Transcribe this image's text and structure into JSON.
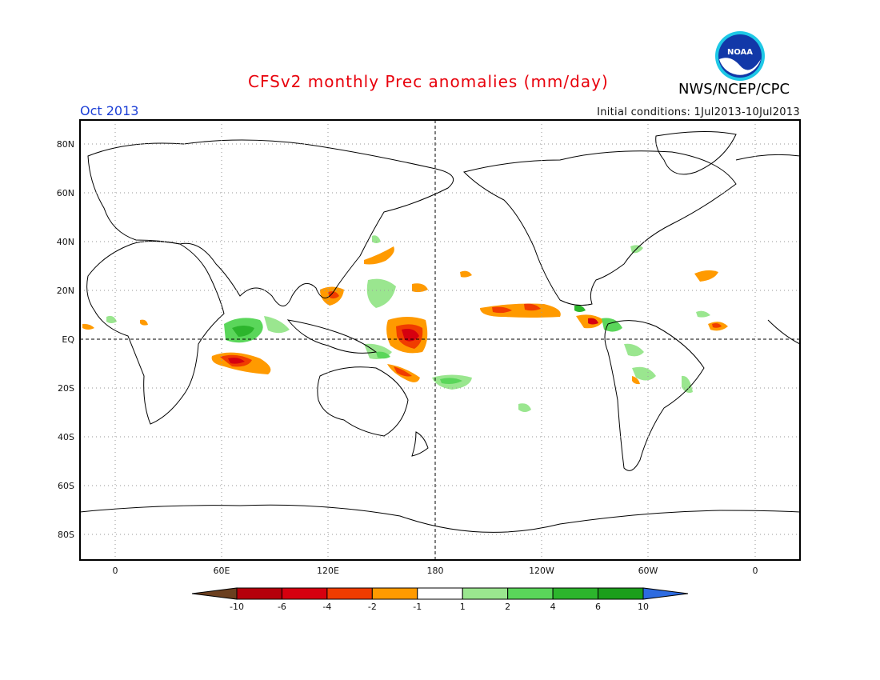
{
  "header": {
    "title": "CFSv2 monthly Prec anomalies (mm/day)",
    "month": "Oct 2013",
    "initial_conditions": "Initial conditions: 1Jul2013-10Jul2013",
    "agency": "NWS/NCEP/CPC",
    "logo_text": "NOAA"
  },
  "map": {
    "lat_labels": [
      "80N",
      "60N",
      "40N",
      "20N",
      "EQ",
      "20S",
      "40S",
      "60S",
      "80S"
    ],
    "lon_labels": [
      "0",
      "60E",
      "120E",
      "180",
      "120W",
      "60W",
      "0"
    ]
  },
  "colorbar": {
    "labels": [
      "-10",
      "-6",
      "-4",
      "-2",
      "-1",
      "1",
      "2",
      "4",
      "6",
      "10"
    ],
    "colors": [
      "#6b3f1f",
      "#b5000b",
      "#d6000f",
      "#f03c00",
      "#ff9a00",
      "#ffffff",
      "#9ae68f",
      "#5ad65a",
      "#2cb52c",
      "#1b9e1b",
      "#2d6be0"
    ]
  }
}
